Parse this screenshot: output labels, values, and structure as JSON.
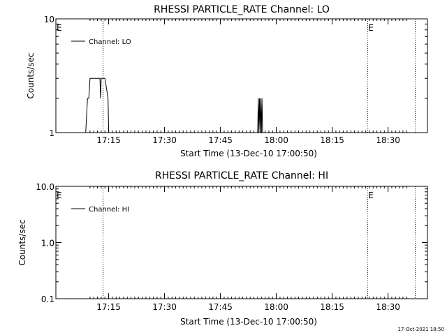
{
  "footer_timestamp": "17-Oct-2021 18:50",
  "colors": {
    "background": "#ffffff",
    "foreground": "#000000"
  },
  "chart_data": [
    {
      "type": "line",
      "title": "RHESSI PARTICLE_RATE Channel: LO",
      "xlabel": "Start Time (13-Dec-10 17:00:50)",
      "ylabel": "Counts/sec",
      "y_scale": "log",
      "ylim": [
        1,
        10
      ],
      "y_ticks": [
        "1",
        "10"
      ],
      "x_ticks": [
        "17:15",
        "17:30",
        "17:45",
        "18:00",
        "18:15",
        "18:30"
      ],
      "legend": {
        "placement": "top-left",
        "entries": [
          "Channel: LO"
        ]
      },
      "event_markers": {
        "labels": [
          "E",
          "E"
        ],
        "times": [
          "17:00:50",
          "18:24:30"
        ]
      },
      "vertical_dotted_lines": [
        "17:13:30",
        "18:24:30",
        "18:37:20"
      ],
      "series": [
        {
          "name": "Channel: LO",
          "points": [
            [
              "17:08:50",
              1
            ],
            [
              "17:09:20",
              2
            ],
            [
              "17:09:40",
              2
            ],
            [
              "17:10:00",
              3
            ],
            [
              "17:12:40",
              3
            ],
            [
              "17:12:50",
              2
            ],
            [
              "17:13:00",
              3
            ],
            [
              "17:14:00",
              3
            ],
            [
              "17:14:50",
              2
            ],
            [
              "17:15:00",
              1
            ],
            [
              "17:55:00",
              1
            ],
            [
              "17:55:10",
              2
            ],
            [
              "17:55:20",
              1
            ],
            [
              "17:55:30",
              2
            ],
            [
              "17:55:40",
              1
            ],
            [
              "17:55:50",
              2
            ],
            [
              "17:56:00",
              1
            ],
            [
              "17:56:10",
              2
            ],
            [
              "17:56:20",
              1
            ]
          ]
        }
      ]
    },
    {
      "type": "line",
      "title": "RHESSI PARTICLE_RATE Channel: HI",
      "xlabel": "Start Time (13-Dec-10 17:00:50)",
      "ylabel": "Counts/sec",
      "y_scale": "log",
      "ylim": [
        0.1,
        10.0
      ],
      "y_ticks": [
        "0.1",
        "1.0",
        "10.0"
      ],
      "x_ticks": [
        "17:15",
        "17:30",
        "17:45",
        "18:00",
        "18:15",
        "18:30"
      ],
      "legend": {
        "placement": "top-left",
        "entries": [
          "Channel: HI"
        ]
      },
      "event_markers": {
        "labels": [
          "E",
          "E"
        ],
        "times": [
          "17:00:50",
          "18:24:30"
        ]
      },
      "vertical_dotted_lines": [
        "17:13:30",
        "18:24:30",
        "18:37:20"
      ],
      "series": [
        {
          "name": "Channel: HI",
          "points": []
        }
      ]
    }
  ]
}
